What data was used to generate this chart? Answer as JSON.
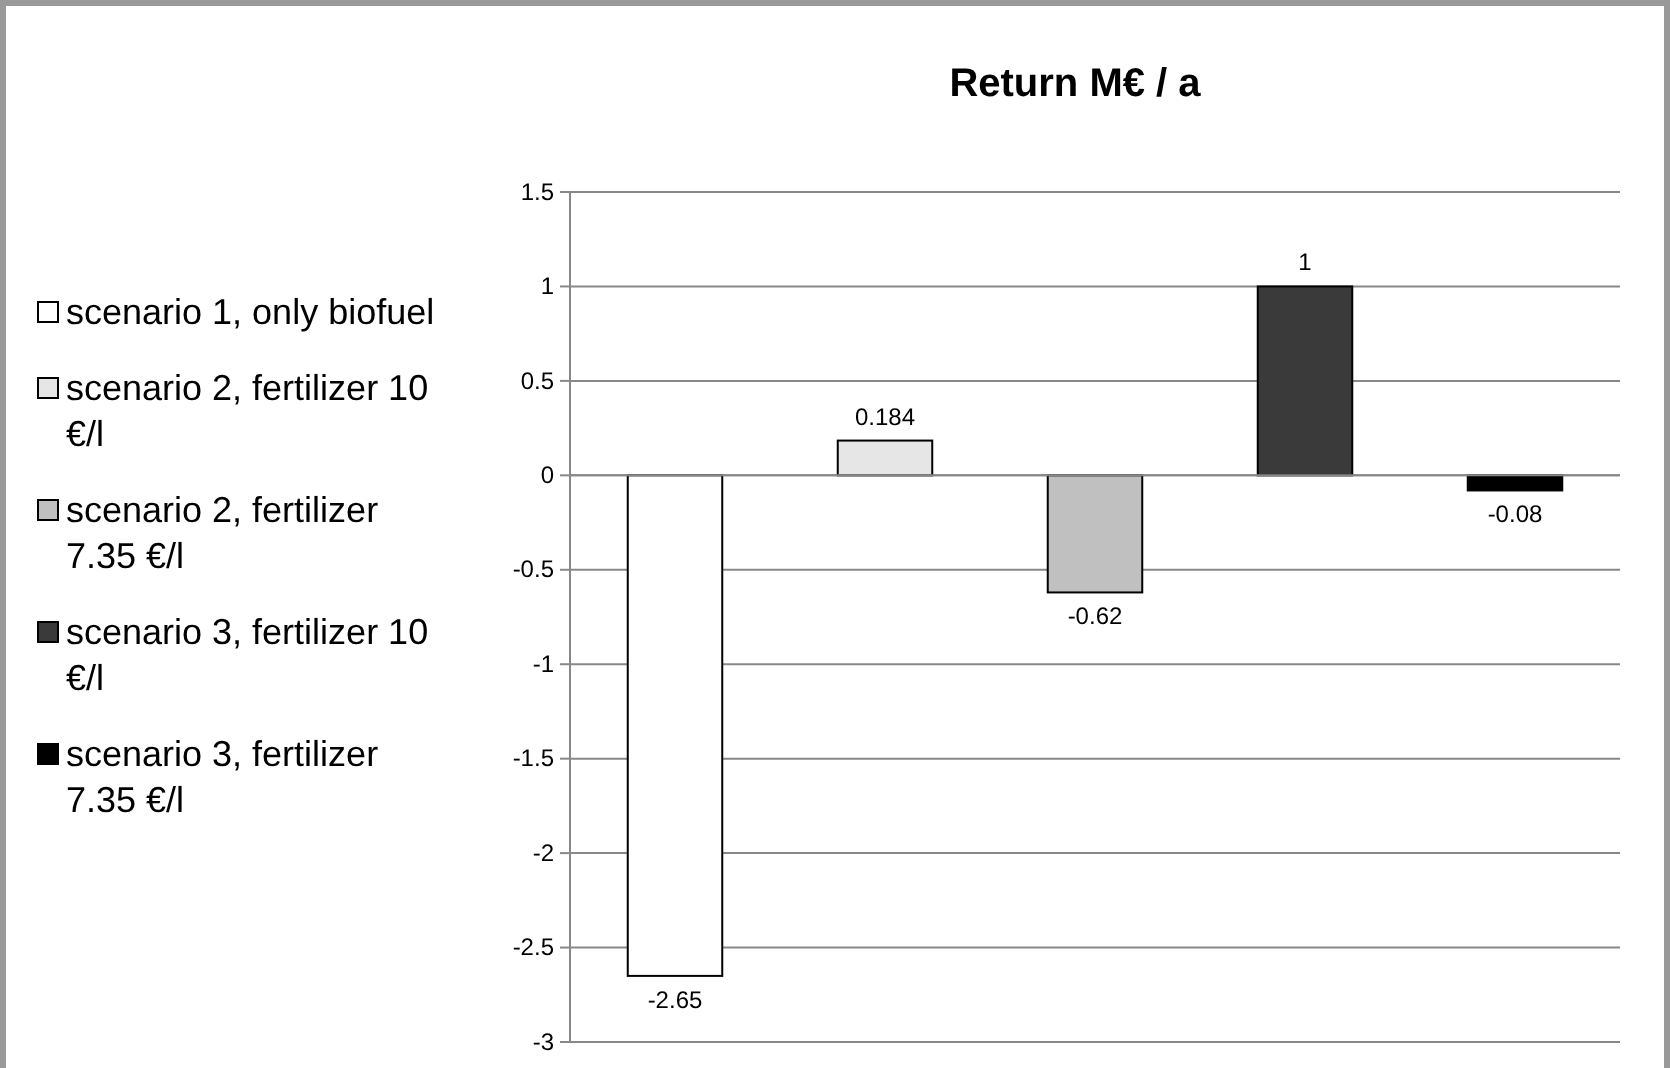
{
  "chart_data": {
    "type": "bar",
    "title": "Return M€ / a",
    "categories": [
      null
    ],
    "series": [
      {
        "name": "scenario 1, only biofuel",
        "color": "#ffffff",
        "values": [
          -2.65
        ]
      },
      {
        "name": "scenario 2, fertilizer 10 €/l",
        "color": "#e6e6e6",
        "values": [
          0.184
        ]
      },
      {
        "name": "scenario 2, fertilizer 7.35 €/l",
        "color": "#c0c0c0",
        "values": [
          -0.62
        ]
      },
      {
        "name": "scenario 3, fertilizer 10 €/l",
        "color": "#3a3a3a",
        "values": [
          1
        ]
      },
      {
        "name": "scenario 3, fertilizer 7.35 €/l",
        "color": "#000000",
        "values": [
          -0.08
        ]
      }
    ],
    "ylim": [
      -3,
      1.5
    ],
    "yticks": [
      -3,
      -2.5,
      -2,
      -1.5,
      -1,
      -0.5,
      0,
      0.5,
      1,
      1.5
    ],
    "grid": "y",
    "legend": "left",
    "data_labels": true
  }
}
